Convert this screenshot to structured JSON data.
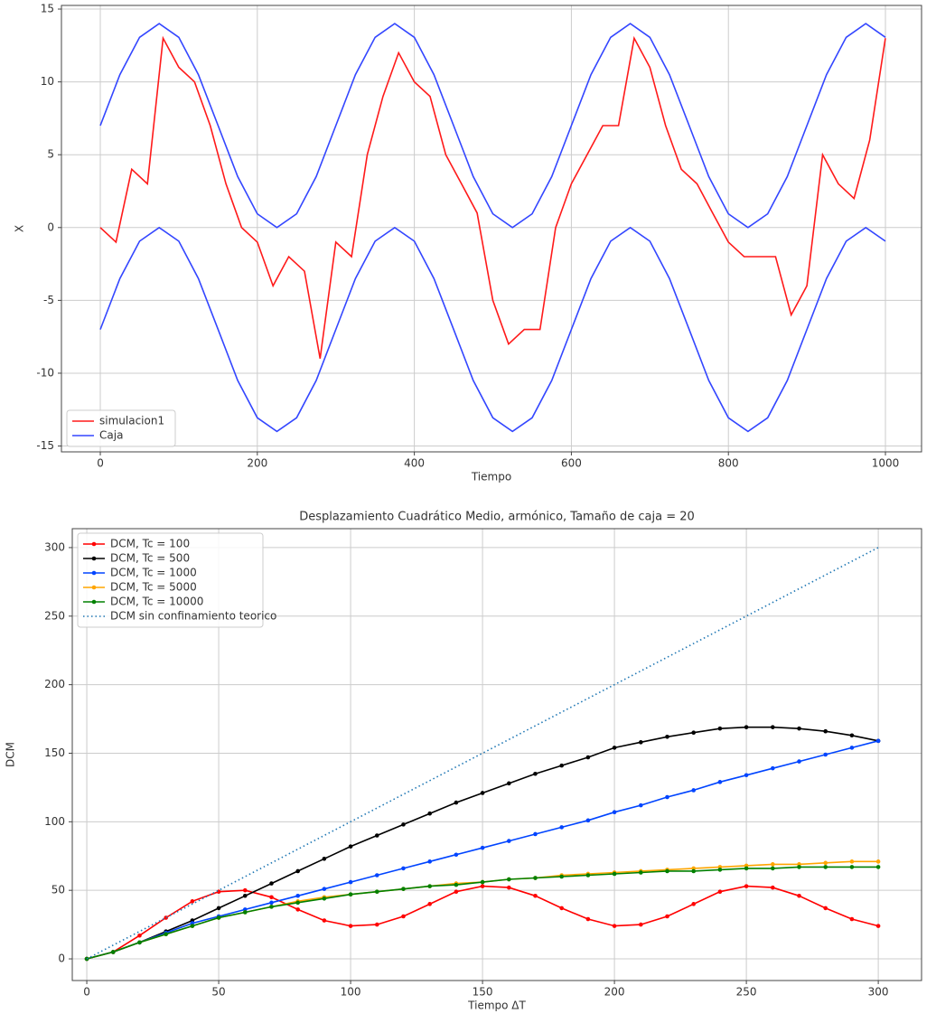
{
  "chart_data": [
    {
      "type": "line",
      "xlabel": "Tiempo",
      "ylabel": "X",
      "xlim": [
        -49.5,
        1046
      ],
      "ylim": [
        -15.4,
        15.25
      ],
      "xticks": [
        0,
        200,
        400,
        600,
        800,
        1000
      ],
      "yticks": [
        -15,
        -10,
        -5,
        0,
        5,
        10,
        15
      ],
      "grid": true,
      "legend": "lower left",
      "series": [
        {
          "name": "simulacion1",
          "color": "#ff1a1a",
          "x": [
            0,
            20,
            40,
            60,
            80,
            100,
            120,
            140,
            160,
            180,
            200,
            220,
            240,
            260,
            280,
            300,
            320,
            340,
            360,
            380,
            400,
            420,
            440,
            460,
            480,
            500,
            520,
            540,
            560,
            580,
            600,
            620,
            640,
            660,
            680,
            700,
            720,
            740,
            760,
            780,
            800,
            820,
            840,
            860,
            880,
            900,
            920,
            940,
            960,
            980,
            1000
          ],
          "values": [
            0,
            -1,
            4,
            3,
            13,
            11,
            10,
            7,
            3,
            0,
            -1,
            -4,
            -2,
            -3,
            -9,
            -1,
            -2,
            5,
            9,
            12,
            10,
            9,
            5,
            3,
            1,
            -5,
            -8,
            -7,
            -7,
            0,
            3,
            5,
            7,
            7,
            13,
            11,
            7,
            4,
            3,
            1,
            -1,
            -2,
            -2,
            -2,
            -6,
            -4,
            5,
            3,
            2,
            6,
            13
          ]
        },
        {
          "name": "Caja",
          "color": "#3346ff",
          "x": [
            0,
            25,
            50,
            75,
            100,
            125,
            150,
            175,
            200,
            225,
            250,
            275,
            300,
            325,
            350,
            375,
            400,
            425,
            450,
            475,
            500,
            525,
            550,
            575,
            600,
            625,
            650,
            675,
            700,
            725,
            750,
            775,
            800,
            825,
            850,
            875,
            900,
            925,
            950,
            975,
            1000
          ],
          "upper": [
            7,
            10.5,
            13.06,
            14,
            13.06,
            10.5,
            7,
            3.5,
            0.94,
            0,
            0.94,
            3.5,
            7,
            10.5,
            13.06,
            14,
            13.06,
            10.5,
            7,
            3.5,
            0.94,
            0,
            0.94,
            3.5,
            7,
            10.5,
            13.06,
            14,
            13.06,
            10.5,
            7,
            3.5,
            0.94,
            0,
            0.94,
            3.5,
            7,
            10.5,
            13.06,
            14,
            13.06
          ],
          "lower": [
            -7,
            -3.5,
            -0.94,
            0,
            -0.94,
            -3.5,
            -7,
            -10.5,
            -13.06,
            -14,
            -13.06,
            -10.5,
            -7,
            -3.5,
            -0.94,
            0,
            -0.94,
            -3.5,
            -7,
            -10.5,
            -13.06,
            -14,
            -13.06,
            -10.5,
            -7,
            -3.5,
            -0.94,
            0,
            -0.94,
            -3.5,
            -7,
            -10.5,
            -13.06,
            -14,
            -13.06,
            -10.5,
            -7,
            -3.5,
            -0.94,
            0,
            -0.94
          ]
        }
      ]
    },
    {
      "type": "line",
      "title": "Desplazamiento Cuadrático Medio, armónico, Tamaño de caja = 20",
      "xlabel": "Tiempo ΔT",
      "ylabel": "DCM",
      "xlim": [
        -5.5,
        316.4
      ],
      "ylim": [
        -15.8,
        313.8
      ],
      "xticks": [
        0,
        50,
        100,
        150,
        200,
        250,
        300
      ],
      "yticks": [
        0,
        50,
        100,
        150,
        200,
        250,
        300
      ],
      "grid": true,
      "legend": "upper left",
      "markers": true,
      "x": [
        0,
        10,
        20,
        30,
        40,
        50,
        60,
        70,
        80,
        90,
        100,
        110,
        120,
        130,
        140,
        150,
        160,
        170,
        180,
        190,
        200,
        210,
        220,
        230,
        240,
        250,
        260,
        270,
        280,
        290,
        300
      ],
      "series": [
        {
          "name": "DCM, Tc = 100",
          "color": "#ff0000",
          "values": [
            0,
            5,
            17,
            30,
            42,
            49,
            50,
            45,
            36,
            28,
            24,
            25,
            31,
            40,
            49,
            53,
            52,
            46,
            37,
            29,
            24,
            25,
            31,
            40,
            49,
            53,
            52,
            46,
            37,
            29,
            24
          ]
        },
        {
          "name": "DCM, Tc = 500",
          "color": "#000000",
          "values": [
            0,
            5,
            12,
            20,
            28,
            37,
            46,
            55,
            64,
            73,
            82,
            90,
            98,
            106,
            114,
            121,
            128,
            135,
            141,
            147,
            154,
            158,
            162,
            165,
            168,
            169,
            169,
            168,
            166,
            163,
            159
          ]
        },
        {
          "name": "DCM, Tc = 1000",
          "color": "#0044ff",
          "values": [
            0,
            5,
            12,
            19,
            26,
            31,
            36,
            41,
            46,
            51,
            56,
            61,
            66,
            71,
            76,
            81,
            86,
            91,
            96,
            101,
            107,
            112,
            118,
            123,
            129,
            134,
            139,
            144,
            149,
            154,
            159
          ]
        },
        {
          "name": "DCM, Tc = 5000",
          "color": "#ffa500",
          "values": [
            0,
            5,
            12,
            18,
            24,
            30,
            34,
            38,
            42,
            45,
            47,
            49,
            51,
            53,
            55,
            56,
            58,
            59,
            61,
            62,
            63,
            64,
            65,
            66,
            67,
            68,
            69,
            69,
            70,
            71,
            71
          ]
        },
        {
          "name": "DCM, Tc = 10000",
          "color": "#008000",
          "values": [
            0,
            5,
            12,
            18,
            24,
            30,
            34,
            38,
            41,
            44,
            47,
            49,
            51,
            53,
            54,
            56,
            58,
            59,
            60,
            61,
            62,
            63,
            64,
            64,
            65,
            66,
            66,
            67,
            67,
            67,
            67
          ]
        },
        {
          "name": "DCM sin confinamiento teorico",
          "color": "#1f77b4",
          "style": "dotted",
          "x": [
            0,
            300
          ],
          "values": [
            0,
            300
          ]
        }
      ]
    }
  ]
}
